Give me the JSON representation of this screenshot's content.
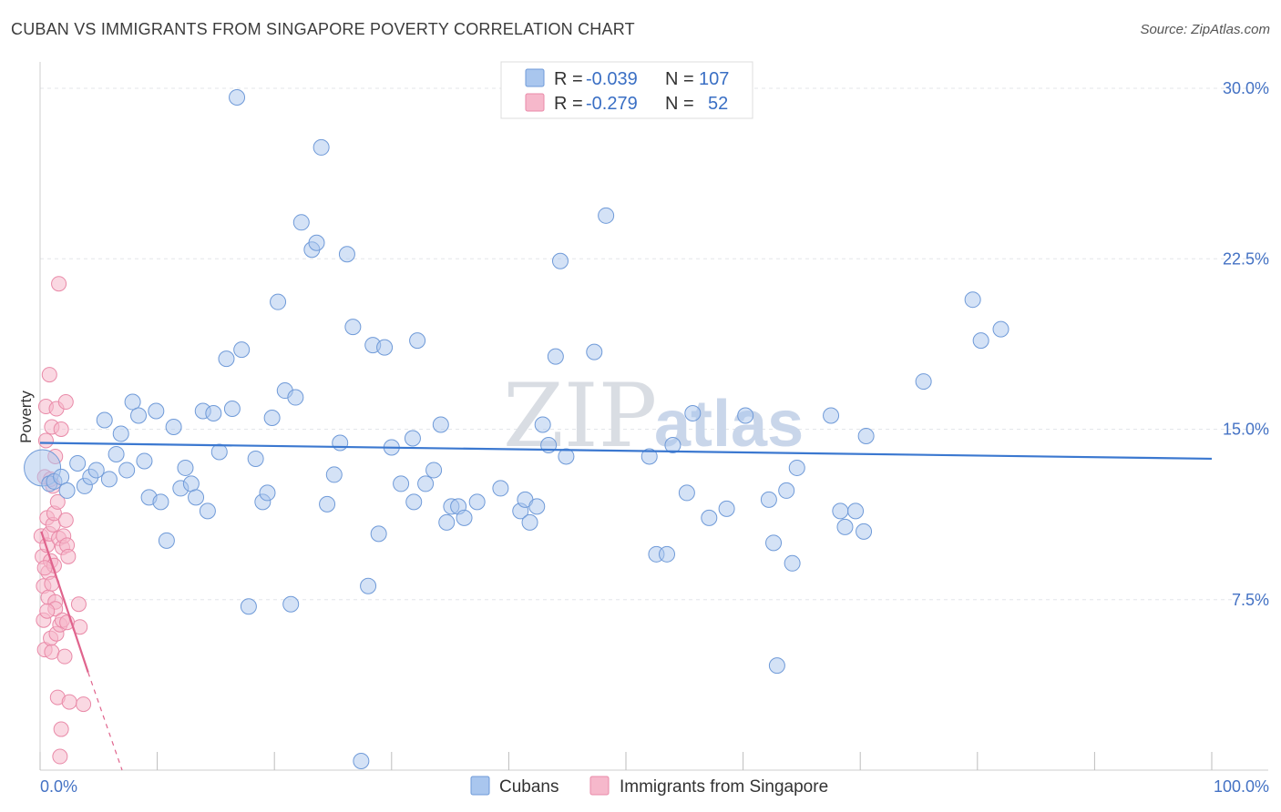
{
  "title": "CUBAN VS IMMIGRANTS FROM SINGAPORE POVERTY CORRELATION CHART",
  "source": "Source: ZipAtlas.com",
  "watermark": "ZIP",
  "watermark2": "atlas",
  "colors": {
    "cubans_fill": "#a9c6ee",
    "cubans_stroke": "#6f9ad8",
    "cubans_line": "#3b78d0",
    "sing_fill": "#f6b8cb",
    "sing_stroke": "#e98aa8",
    "sing_line": "#e0648d",
    "tick_text": "#4472c4",
    "grid": "#e3e6ea"
  },
  "legend": {
    "rows": [
      {
        "r_label": "R =",
        "r_value": "-0.039",
        "n_label": "N =",
        "n_value": "107"
      },
      {
        "r_label": "R =",
        "r_value": "-0.279",
        "n_label": "N =",
        "n_value": "52"
      }
    ]
  },
  "bottom_legend": [
    "Cubans",
    "Immigrants from Singapore"
  ],
  "chart_data": {
    "type": "scatter",
    "title": "CUBAN VS IMMIGRANTS FROM SINGAPORE POVERTY CORRELATION CHART",
    "xlabel": "",
    "ylabel": "Poverty",
    "xlim": [
      0,
      100
    ],
    "ylim": [
      0,
      30
    ],
    "x_tick_labels": [
      "0.0%",
      "100.0%"
    ],
    "y_ticks": [
      7.5,
      15.0,
      22.5,
      30.0
    ],
    "y_tick_labels": [
      "7.5%",
      "15.0%",
      "22.5%",
      "30.0%"
    ],
    "grid": true,
    "legend_position": "top-center",
    "series": [
      {
        "name": "Cubans",
        "trend": {
          "x": [
            0,
            100
          ],
          "y": [
            14.4,
            13.7
          ]
        },
        "points": [
          [
            0.2,
            13.3
          ],
          [
            0.8,
            12.6
          ],
          [
            1.2,
            12.7
          ],
          [
            1.8,
            12.9
          ],
          [
            2.3,
            12.3
          ],
          [
            3.2,
            13.5
          ],
          [
            3.8,
            12.5
          ],
          [
            4.3,
            12.9
          ],
          [
            4.8,
            13.2
          ],
          [
            5.5,
            15.4
          ],
          [
            5.9,
            12.8
          ],
          [
            6.5,
            13.9
          ],
          [
            6.9,
            14.8
          ],
          [
            7.4,
            13.2
          ],
          [
            7.9,
            16.2
          ],
          [
            8.4,
            15.6
          ],
          [
            8.9,
            13.6
          ],
          [
            9.3,
            12.0
          ],
          [
            9.9,
            15.8
          ],
          [
            10.3,
            11.8
          ],
          [
            10.8,
            10.1
          ],
          [
            11.4,
            15.1
          ],
          [
            12.0,
            12.4
          ],
          [
            12.4,
            13.3
          ],
          [
            12.9,
            12.6
          ],
          [
            13.3,
            12.0
          ],
          [
            13.9,
            15.8
          ],
          [
            14.3,
            11.4
          ],
          [
            14.8,
            15.7
          ],
          [
            15.3,
            14.0
          ],
          [
            15.9,
            18.1
          ],
          [
            16.4,
            15.9
          ],
          [
            16.8,
            29.6
          ],
          [
            17.2,
            18.5
          ],
          [
            17.8,
            7.2
          ],
          [
            18.4,
            13.7
          ],
          [
            19.0,
            11.8
          ],
          [
            19.4,
            12.2
          ],
          [
            19.8,
            15.5
          ],
          [
            20.3,
            20.6
          ],
          [
            20.9,
            16.7
          ],
          [
            21.4,
            7.3
          ],
          [
            21.8,
            16.4
          ],
          [
            22.3,
            24.1
          ],
          [
            23.2,
            22.9
          ],
          [
            23.6,
            23.2
          ],
          [
            24.0,
            27.4
          ],
          [
            24.5,
            11.7
          ],
          [
            25.1,
            13.0
          ],
          [
            25.6,
            14.4
          ],
          [
            26.2,
            22.7
          ],
          [
            26.7,
            19.5
          ],
          [
            27.4,
            0.4
          ],
          [
            28.0,
            8.1
          ],
          [
            28.4,
            18.7
          ],
          [
            28.9,
            10.4
          ],
          [
            29.4,
            18.6
          ],
          [
            30.0,
            14.2
          ],
          [
            30.8,
            12.6
          ],
          [
            31.8,
            14.6
          ],
          [
            32.2,
            18.9
          ],
          [
            32.9,
            12.6
          ],
          [
            33.6,
            13.2
          ],
          [
            34.2,
            15.2
          ],
          [
            34.7,
            10.9
          ],
          [
            35.1,
            11.6
          ],
          [
            35.7,
            11.6
          ],
          [
            36.2,
            11.1
          ],
          [
            37.3,
            11.8
          ],
          [
            39.3,
            12.4
          ],
          [
            41.0,
            11.4
          ],
          [
            41.4,
            11.9
          ],
          [
            41.8,
            10.9
          ],
          [
            42.4,
            11.6
          ],
          [
            42.9,
            15.2
          ],
          [
            43.4,
            14.3
          ],
          [
            44.0,
            18.2
          ],
          [
            44.4,
            22.4
          ],
          [
            44.9,
            13.8
          ],
          [
            47.3,
            18.4
          ],
          [
            48.3,
            24.4
          ],
          [
            52.0,
            13.8
          ],
          [
            52.6,
            9.5
          ],
          [
            53.5,
            9.5
          ],
          [
            54.0,
            14.3
          ],
          [
            55.2,
            12.2
          ],
          [
            55.7,
            15.7
          ],
          [
            57.1,
            11.1
          ],
          [
            58.6,
            11.5
          ],
          [
            60.2,
            15.6
          ],
          [
            62.2,
            11.9
          ],
          [
            62.6,
            10.0
          ],
          [
            63.7,
            12.3
          ],
          [
            64.2,
            9.1
          ],
          [
            64.6,
            13.3
          ],
          [
            67.5,
            15.6
          ],
          [
            68.3,
            11.4
          ],
          [
            68.7,
            10.7
          ],
          [
            69.6,
            11.4
          ],
          [
            70.3,
            10.5
          ],
          [
            70.5,
            14.7
          ],
          [
            75.4,
            17.1
          ],
          [
            79.6,
            20.7
          ],
          [
            80.3,
            18.9
          ],
          [
            82.0,
            19.4
          ],
          [
            62.9,
            4.6
          ],
          [
            31.9,
            11.8
          ]
        ]
      },
      {
        "name": "Immigrants from Singapore",
        "trend": {
          "x": [
            0.1,
            4.1
          ],
          "y": [
            10.5,
            4.3
          ]
        },
        "trend_extension": {
          "x": [
            4.1,
            7.0
          ],
          "y": [
            4.3,
            0.0
          ]
        },
        "points": [
          [
            0.1,
            10.3
          ],
          [
            0.2,
            9.4
          ],
          [
            0.3,
            8.1
          ],
          [
            0.3,
            6.6
          ],
          [
            0.4,
            5.3
          ],
          [
            0.4,
            12.9
          ],
          [
            0.5,
            16.0
          ],
          [
            0.5,
            14.5
          ],
          [
            0.6,
            11.1
          ],
          [
            0.6,
            9.9
          ],
          [
            0.7,
            8.7
          ],
          [
            0.7,
            7.6
          ],
          [
            0.8,
            17.4
          ],
          [
            0.8,
            10.4
          ],
          [
            0.9,
            9.2
          ],
          [
            0.9,
            5.8
          ],
          [
            1.0,
            5.2
          ],
          [
            1.0,
            15.1
          ],
          [
            1.1,
            12.5
          ],
          [
            1.1,
            10.8
          ],
          [
            1.2,
            11.3
          ],
          [
            1.2,
            9.0
          ],
          [
            1.3,
            7.4
          ],
          [
            1.3,
            7.1
          ],
          [
            1.4,
            15.9
          ],
          [
            1.4,
            6.0
          ],
          [
            1.5,
            11.8
          ],
          [
            1.5,
            3.2
          ],
          [
            1.6,
            21.4
          ],
          [
            1.6,
            10.2
          ],
          [
            1.7,
            6.4
          ],
          [
            1.7,
            0.6
          ],
          [
            1.8,
            15.0
          ],
          [
            1.8,
            1.8
          ],
          [
            1.9,
            9.8
          ],
          [
            1.9,
            6.6
          ],
          [
            2.0,
            10.3
          ],
          [
            2.1,
            5.0
          ],
          [
            2.2,
            16.2
          ],
          [
            2.2,
            11.0
          ],
          [
            2.3,
            9.9
          ],
          [
            2.3,
            6.5
          ],
          [
            2.4,
            9.4
          ],
          [
            2.5,
            3.0
          ],
          [
            3.3,
            7.3
          ],
          [
            3.4,
            6.3
          ],
          [
            3.7,
            2.9
          ],
          [
            0.6,
            7.0
          ],
          [
            0.9,
            12.8
          ],
          [
            1.3,
            13.8
          ],
          [
            0.4,
            8.9
          ],
          [
            1.0,
            8.2
          ]
        ]
      }
    ]
  }
}
